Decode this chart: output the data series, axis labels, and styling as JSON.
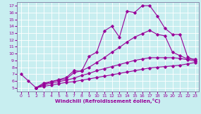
{
  "xlabel": "Windchill (Refroidissement éolien,°C)",
  "bg_color": "#c8eef0",
  "line_color": "#990099",
  "grid_color": "#ffffff",
  "xlim": [
    -0.5,
    23.5
  ],
  "ylim": [
    4.5,
    17.5
  ],
  "xticks": [
    0,
    1,
    2,
    3,
    4,
    5,
    6,
    7,
    8,
    9,
    10,
    11,
    12,
    13,
    14,
    15,
    16,
    17,
    18,
    19,
    20,
    21,
    22,
    23
  ],
  "yticks": [
    5,
    6,
    7,
    8,
    9,
    10,
    11,
    12,
    13,
    14,
    15,
    16,
    17
  ],
  "lines": [
    {
      "x": [
        0,
        1,
        2,
        3,
        4,
        5,
        6,
        7,
        8,
        9,
        10,
        11,
        12,
        13,
        14,
        15,
        16,
        17,
        18,
        19,
        20,
        21,
        22,
        23
      ],
      "y": [
        7.0,
        6.0,
        5.0,
        5.7,
        5.9,
        6.2,
        6.5,
        7.5,
        7.4,
        9.6,
        10.2,
        13.3,
        14.0,
        12.4,
        16.2,
        16.0,
        17.0,
        17.0,
        15.5,
        13.7,
        12.8,
        12.8,
        9.5,
        9.0
      ]
    },
    {
      "x": [
        2,
        3,
        4,
        5,
        6,
        7,
        8,
        9,
        10,
        11,
        12,
        13,
        14,
        15,
        16,
        17,
        18,
        19,
        20,
        21,
        22,
        23
      ],
      "y": [
        5.0,
        5.5,
        5.9,
        6.1,
        6.3,
        7.2,
        7.5,
        8.0,
        8.7,
        9.4,
        10.2,
        10.9,
        11.7,
        12.4,
        12.9,
        13.4,
        12.8,
        12.6,
        10.2,
        9.7,
        9.2,
        9.2
      ]
    },
    {
      "x": [
        2,
        3,
        4,
        5,
        6,
        7,
        8,
        9,
        10,
        11,
        12,
        13,
        14,
        15,
        16,
        17,
        18,
        19,
        20,
        21,
        22,
        23
      ],
      "y": [
        5.0,
        5.4,
        5.7,
        5.9,
        6.1,
        6.4,
        6.8,
        7.1,
        7.5,
        7.8,
        8.1,
        8.4,
        8.7,
        9.0,
        9.2,
        9.4,
        9.4,
        9.4,
        9.4,
        9.3,
        9.1,
        8.9
      ]
    },
    {
      "x": [
        2,
        3,
        4,
        5,
        6,
        7,
        8,
        9,
        10,
        11,
        12,
        13,
        14,
        15,
        16,
        17,
        18,
        19,
        20,
        21,
        22,
        23
      ],
      "y": [
        5.0,
        5.2,
        5.4,
        5.6,
        5.8,
        5.9,
        6.1,
        6.3,
        6.5,
        6.7,
        6.9,
        7.1,
        7.3,
        7.5,
        7.7,
        7.9,
        8.0,
        8.1,
        8.2,
        8.3,
        8.5,
        8.7
      ]
    }
  ]
}
